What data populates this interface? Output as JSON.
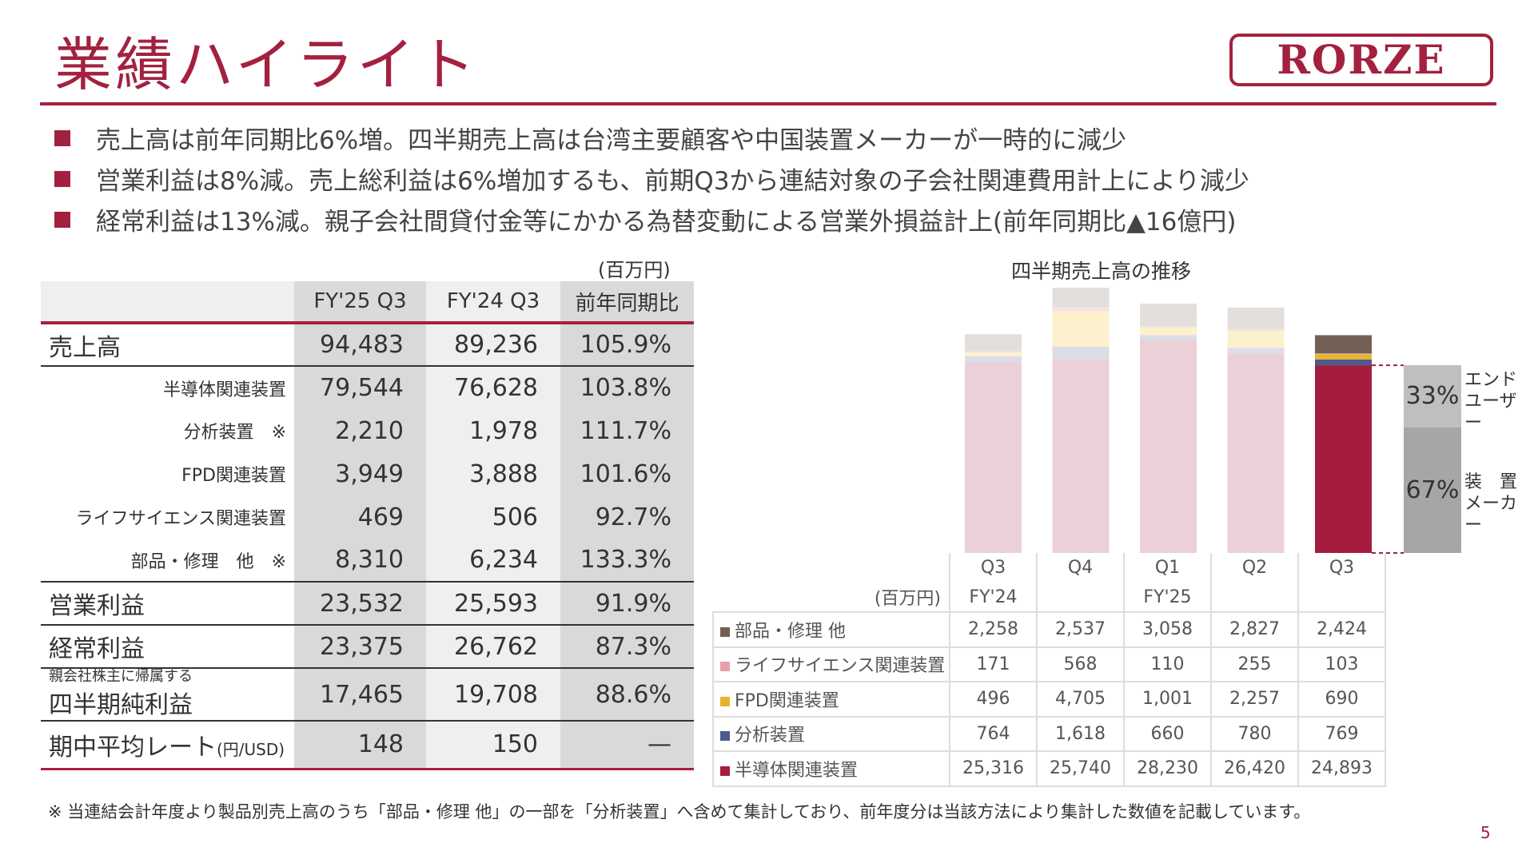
{
  "title": "業績ハイライト",
  "logo": "RORZE",
  "bullets": [
    "売上高は前年同期比6%増。四半期売上高は台湾主要顧客や中国装置メーカーが一時的に減少",
    "営業利益は8%減。売上総利益は6%増加するも、前期Q3から連結対象の子会社関連費用計上により減少",
    "経常利益は13%減。親子会社間貸付金等にかかる為替変動による営業外損益計上(前年同期比▲16億円)"
  ],
  "table": {
    "unit": "(百万円)",
    "headers": [
      "FY'25 Q3",
      "FY'24 Q3",
      "前年同期比"
    ],
    "rows": [
      {
        "label": "売上高",
        "values": [
          "94,483",
          "89,236",
          "105.9%"
        ]
      },
      {
        "label": "半導体関連装置",
        "values": [
          "79,544",
          "76,628",
          "103.8%"
        ]
      },
      {
        "label": "分析装置　※",
        "values": [
          "2,210",
          "1,978",
          "111.7%"
        ]
      },
      {
        "label": "FPD関連装置",
        "values": [
          "3,949",
          "3,888",
          "101.6%"
        ]
      },
      {
        "label": "ライフサイエンス関連装置",
        "values": [
          "469",
          "506",
          "92.7%"
        ]
      },
      {
        "label": "部品・修理　他　※",
        "values": [
          "8,310",
          "6,234",
          "133.3%"
        ]
      },
      {
        "label": "営業利益",
        "values": [
          "23,532",
          "25,593",
          "91.9%"
        ]
      },
      {
        "label": "経常利益",
        "values": [
          "23,375",
          "26,762",
          "87.3%"
        ]
      },
      {
        "label_small": "親会社株主に帰属する",
        "label": "四半期純利益",
        "values": [
          "17,465",
          "19,708",
          "88.6%"
        ]
      },
      {
        "label": "期中平均レート",
        "label_unit": "(円/USD)",
        "values": [
          "148",
          "150",
          "—"
        ]
      }
    ]
  },
  "chart_data": {
    "type": "bar",
    "stacked": true,
    "title": "四半期売上高の推移",
    "unit": "(百万円)",
    "categories": [
      "Q3",
      "Q4",
      "Q1",
      "Q2",
      "Q3"
    ],
    "fiscal_labels": [
      "FY'24",
      "",
      "FY'25",
      "",
      ""
    ],
    "series": [
      {
        "name": "半導体関連装置",
        "color": "#a51c3f",
        "values": [
          25316,
          25740,
          28230,
          26420,
          24893
        ],
        "display": [
          "25,316",
          "25,740",
          "28,230",
          "26,420",
          "24,893"
        ]
      },
      {
        "name": "分析装置",
        "color": "#4e5a8c",
        "values": [
          764,
          1618,
          660,
          780,
          769
        ],
        "display": [
          "764",
          "1,618",
          "660",
          "780",
          "769"
        ]
      },
      {
        "name": "FPD関連装置",
        "color": "#e9b42a",
        "values": [
          496,
          4705,
          1001,
          2257,
          690
        ],
        "display": [
          "496",
          "4,705",
          "1,001",
          "2,257",
          "690"
        ]
      },
      {
        "name": "ライフサイエンス関連装置",
        "color": "#e8a0a8",
        "values": [
          171,
          568,
          110,
          255,
          103
        ],
        "display": [
          "171",
          "568",
          "110",
          "255",
          "103"
        ]
      },
      {
        "name": "部品・修理 他",
        "color": "#736055",
        "values": [
          2258,
          2537,
          3058,
          2827,
          2424
        ],
        "display": [
          "2,258",
          "2,537",
          "3,058",
          "2,827",
          "2,424"
        ]
      }
    ],
    "highlighted_category_index": 4,
    "semiconductor_share": [
      {
        "percent": "33%",
        "label_lines": [
          "エンド",
          "ユーザー"
        ]
      },
      {
        "percent": "67%",
        "label_lines": [
          "装　置",
          "メーカー"
        ]
      }
    ]
  },
  "note": "※ 当連結会計年度より製品別売上高のうち「部品・修理 他」の一部を「分析装置」へ含めて集計しており、前年度分は当該方法により集計した数値を記載しています。",
  "page_number": "5"
}
